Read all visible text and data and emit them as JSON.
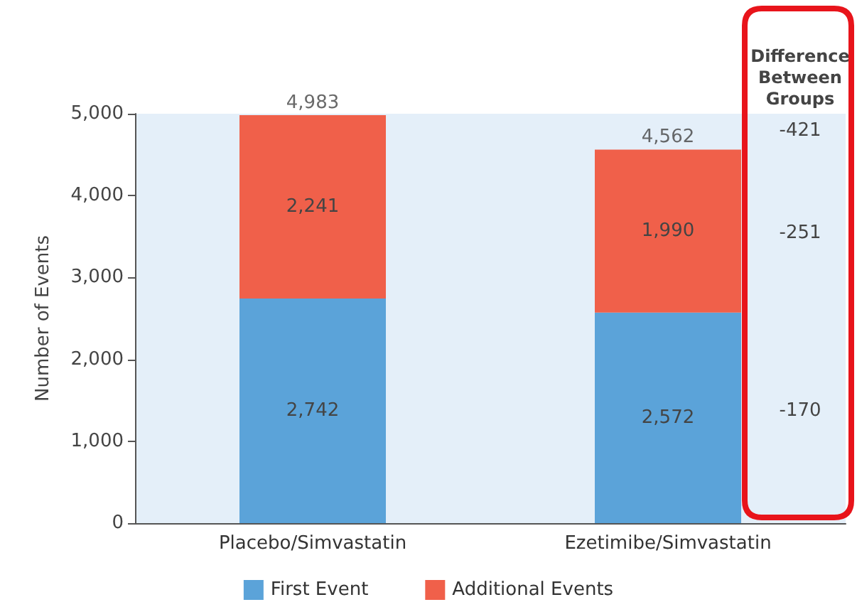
{
  "chart_data": {
    "type": "bar",
    "stacked": true,
    "ylabel": "Number of Events",
    "categories": [
      "Placebo/Simvastatin",
      "Ezetimibe/Simvastatin"
    ],
    "series": [
      {
        "name": "First Event",
        "color": "#5ba3d9",
        "values": [
          2742,
          2572
        ],
        "value_labels": [
          "2,742",
          "2,572"
        ]
      },
      {
        "name": "Additional Events",
        "color": "#f0604a",
        "values": [
          2241,
          1990
        ],
        "value_labels": [
          "2,241",
          "1,990"
        ]
      }
    ],
    "totals": [
      "4,983",
      "4,562"
    ],
    "ylim": [
      0,
      5000
    ],
    "yticks": [
      {
        "value": 0,
        "label": "0"
      },
      {
        "value": 1000,
        "label": "1,000"
      },
      {
        "value": 2000,
        "label": "2,000"
      },
      {
        "value": 3000,
        "label": "3,000"
      },
      {
        "value": 4000,
        "label": "4,000"
      },
      {
        "value": 5000,
        "label": "5,000"
      }
    ],
    "grid": false,
    "legend": "bottom",
    "annotations": [
      "Difference Between Groups",
      "-421",
      "-251",
      "-170"
    ]
  }
}
